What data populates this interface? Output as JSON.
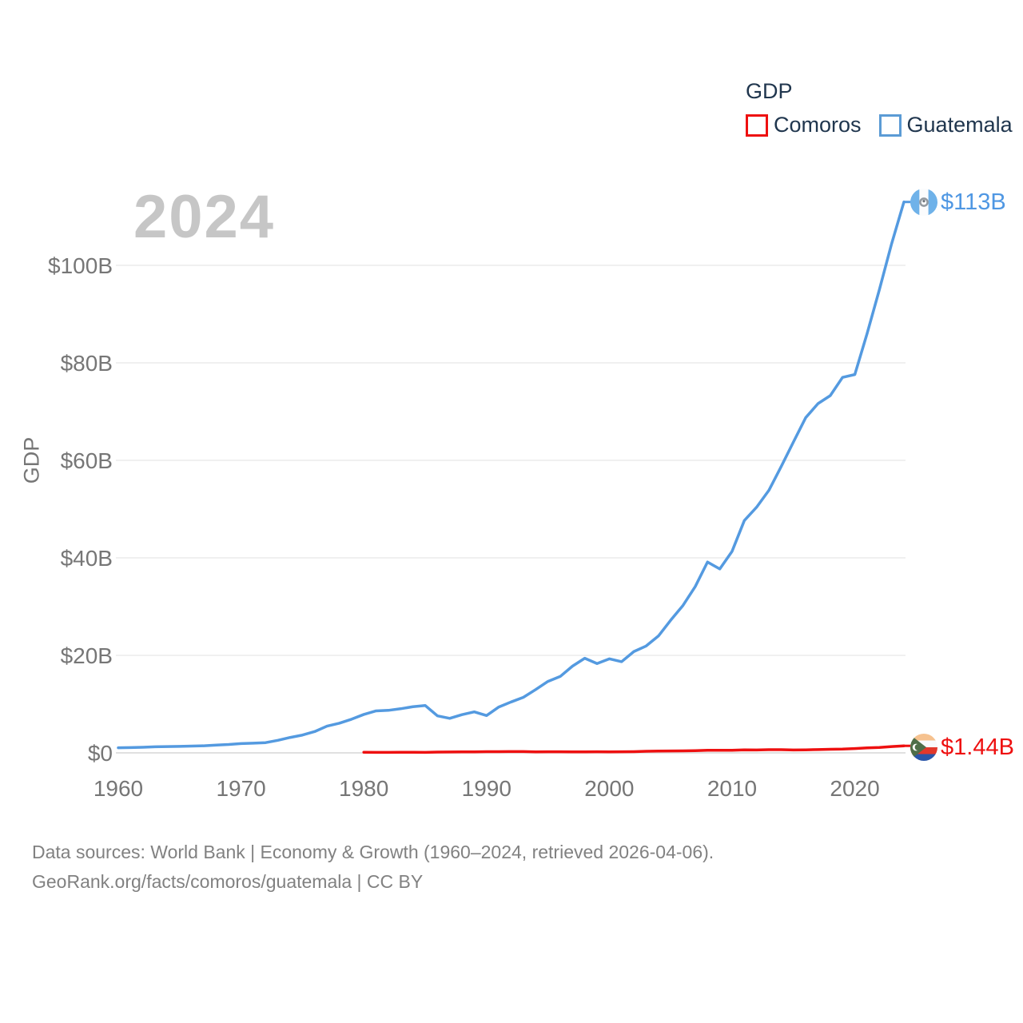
{
  "legend": {
    "title": "GDP",
    "items": [
      {
        "label": "Comoros",
        "color": "#ee1010"
      },
      {
        "label": "Guatemala",
        "color": "#5b9bd5"
      }
    ]
  },
  "watermark": {
    "year": "2024"
  },
  "axes": {
    "y_title": "GDP"
  },
  "end_labels": {
    "guatemala": "$113B",
    "comoros": "$1.44B"
  },
  "footer": {
    "line1": "Data sources: World Bank | Economy & Growth (1960–2024, retrieved 2026-04-06).",
    "line2": "GeoRank.org/facts/comoros/guatemala | CC BY"
  },
  "colors": {
    "guatemala_line": "#549ae0",
    "comoros_line": "#ee1010",
    "axis_text": "#767676",
    "gridline": "#ececec",
    "baseline": "#e0e0e0",
    "legend_text": "#20364e",
    "watermark": "#c6c6c6"
  },
  "chart_data": {
    "type": "line",
    "title": "GDP",
    "ylabel": "GDP",
    "unit": "billion USD (current US$)",
    "xlim": [
      1960,
      2024
    ],
    "ylim": [
      0,
      115
    ],
    "x_ticks": [
      1960,
      1970,
      1980,
      1990,
      2000,
      2010,
      2020
    ],
    "x_tick_labels": [
      "1960",
      "1970",
      "1980",
      "1990",
      "2000",
      "2010",
      "2020"
    ],
    "y_ticks": [
      0,
      20,
      40,
      60,
      80,
      100
    ],
    "y_tick_labels": [
      "$0",
      "$20B",
      "$40B",
      "$60B",
      "$80B",
      "$100B"
    ],
    "grid": "horizontal",
    "legend_position": "top-right",
    "series": [
      {
        "name": "Guatemala",
        "color": "#549ae0",
        "end_label": "$113B",
        "x": [
          1960,
          1961,
          1962,
          1963,
          1964,
          1965,
          1966,
          1967,
          1968,
          1969,
          1970,
          1971,
          1972,
          1973,
          1974,
          1975,
          1976,
          1977,
          1978,
          1979,
          1980,
          1981,
          1982,
          1983,
          1984,
          1985,
          1986,
          1987,
          1988,
          1989,
          1990,
          1991,
          1992,
          1993,
          1994,
          1995,
          1996,
          1997,
          1998,
          1999,
          2000,
          2001,
          2002,
          2003,
          2004,
          2005,
          2006,
          2007,
          2008,
          2009,
          2010,
          2011,
          2012,
          2013,
          2014,
          2015,
          2016,
          2017,
          2018,
          2019,
          2020,
          2021,
          2022,
          2023,
          2024
        ],
        "values": [
          1.04,
          1.08,
          1.14,
          1.24,
          1.3,
          1.33,
          1.39,
          1.45,
          1.6,
          1.72,
          1.9,
          1.98,
          2.1,
          2.57,
          3.16,
          3.65,
          4.37,
          5.48,
          6.07,
          6.9,
          7.88,
          8.61,
          8.72,
          9.05,
          9.47,
          9.72,
          7.59,
          7.08,
          7.84,
          8.41,
          7.65,
          9.41,
          10.44,
          11.4,
          12.98,
          14.66,
          15.67,
          17.79,
          19.4,
          18.32,
          19.29,
          18.7,
          20.78,
          21.92,
          23.97,
          27.21,
          30.23,
          34.11,
          39.14,
          37.73,
          41.34,
          47.65,
          50.39,
          53.85,
          58.72,
          63.77,
          68.76,
          71.64,
          73.28,
          77.02,
          77.6,
          86.0,
          95.0,
          104.45,
          113.0
        ]
      },
      {
        "name": "Comoros",
        "color": "#ee1010",
        "end_label": "$1.44B",
        "x": [
          1980,
          1981,
          1982,
          1983,
          1984,
          1985,
          1986,
          1987,
          1988,
          1989,
          1990,
          1991,
          1992,
          1993,
          1994,
          1995,
          1996,
          1997,
          1998,
          1999,
          2000,
          2001,
          2002,
          2003,
          2004,
          2005,
          2006,
          2007,
          2008,
          2009,
          2010,
          2011,
          2012,
          2013,
          2014,
          2015,
          2016,
          2017,
          2018,
          2019,
          2020,
          2021,
          2022,
          2023,
          2024
        ],
        "values": [
          0.12,
          0.11,
          0.11,
          0.12,
          0.12,
          0.11,
          0.16,
          0.19,
          0.2,
          0.2,
          0.25,
          0.25,
          0.27,
          0.26,
          0.2,
          0.23,
          0.23,
          0.21,
          0.21,
          0.22,
          0.21,
          0.22,
          0.25,
          0.32,
          0.36,
          0.39,
          0.4,
          0.46,
          0.53,
          0.53,
          0.53,
          0.61,
          0.6,
          0.66,
          0.65,
          0.6,
          0.62,
          0.68,
          0.74,
          0.77,
          0.88,
          1.03,
          1.1,
          1.29,
          1.44
        ]
      }
    ]
  }
}
